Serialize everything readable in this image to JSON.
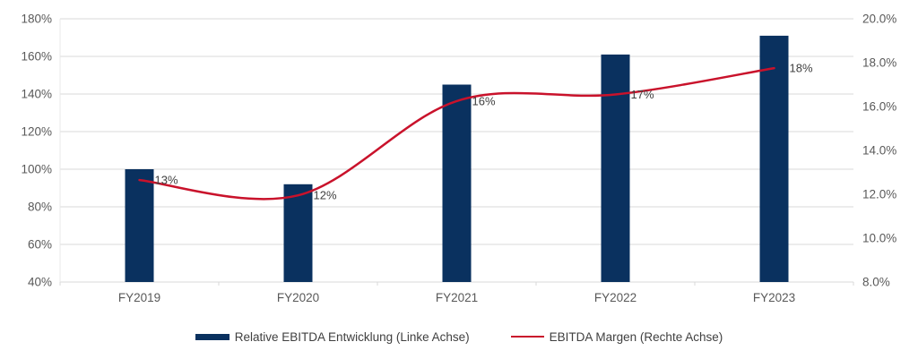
{
  "chart_data": {
    "type": "bar",
    "subtype": "combo-bar-line-dual-axis",
    "title": "",
    "categories": [
      "FY2019",
      "FY2020",
      "FY2021",
      "FY2022",
      "FY2023"
    ],
    "series": [
      {
        "name": "Relative EBITDA Entwicklung (Linke Achse)",
        "type": "bar",
        "axis": "left",
        "values": [
          100,
          92,
          145,
          161,
          171
        ],
        "color": "#0A315F"
      },
      {
        "name": "EBITDA Margen (Rechte Achse)",
        "type": "line",
        "axis": "right",
        "smooth": true,
        "values": [
          13,
          12,
          16,
          17,
          18
        ],
        "plotted_values": [
          12.65,
          11.95,
          16.25,
          16.55,
          17.75
        ],
        "data_labels": [
          "13%",
          "12%",
          "16%",
          "17%",
          "18%"
        ],
        "color": "#C9122B"
      }
    ],
    "left_axis": {
      "min": 40,
      "max": 180,
      "tick_labels": [
        "180%",
        "160%",
        "140%",
        "120%",
        "100%",
        "80%",
        "60%",
        "40%"
      ]
    },
    "right_axis": {
      "min": 8,
      "max": 20,
      "tick_labels": [
        "20.0%",
        "18.0%",
        "16.0%",
        "14.0%",
        "12.0%",
        "10.0%",
        "8.0%"
      ]
    },
    "grid": true,
    "legend_position": "bottom"
  },
  "legend": {
    "items": [
      {
        "label": "Relative EBITDA Entwicklung (Linke Achse)",
        "marker": "bar-swatch",
        "color": "#0A315F"
      },
      {
        "label": "EBITDA Margen (Rechte Achse)",
        "marker": "line-swatch",
        "color": "#C9122B"
      }
    ]
  },
  "colors": {
    "background": "#FFFFFF",
    "bar": "#0A315F",
    "line": "#C9122B",
    "gridline": "#D9D9D9",
    "axis_line": "#E9E9E9",
    "axis_label": "#595959",
    "data_label": "#404040"
  }
}
